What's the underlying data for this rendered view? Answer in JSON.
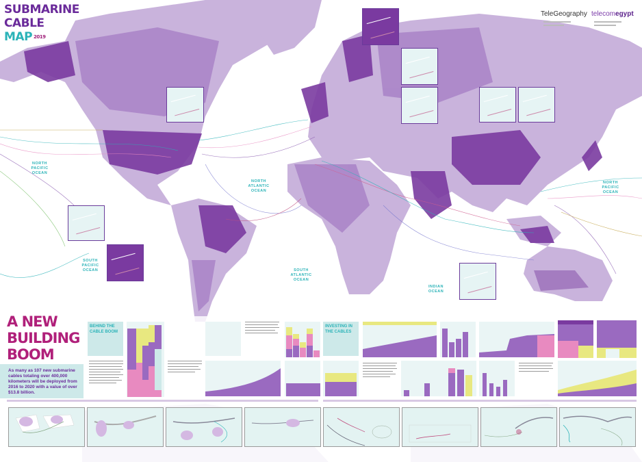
{
  "title": {
    "line1": "SUBMARINE",
    "line2": "CABLE",
    "line3": "MAP",
    "year": "2019"
  },
  "logos": {
    "primary": "TeleGeography",
    "partner_prefix": "telecom",
    "partner_suffix": "egypt"
  },
  "oceans": [
    {
      "id": "north-pacific-west",
      "label": "NORTH PACIFIC OCEAN"
    },
    {
      "id": "north-pacific-east",
      "label": "NORTH PACIFIC OCEAN"
    },
    {
      "id": "north-atlantic",
      "label": "NORTH ATLANTIC OCEAN"
    },
    {
      "id": "south-pacific",
      "label": "SOUTH PACIFIC OCEAN"
    },
    {
      "id": "south-atlantic",
      "label": "SOUTH ATLANTIC OCEAN"
    },
    {
      "id": "indian",
      "label": "INDIAN OCEAN"
    }
  ],
  "headline": {
    "line1": "A NEW",
    "line2": "BUILDING",
    "line3": "BOOM"
  },
  "summary": "As many as 107 new submarine cables totaling over 400,000 kilometers will be deployed from 2016 to 2020 with a value of over $13.8 billion.",
  "sections": {
    "behind": "BEHIND THE CABLE BOOM",
    "investing": "INVESTING IN THE CABLES"
  },
  "colors": {
    "land": "#c9b3dc",
    "land_dark": "#7a3aa0",
    "land_mid": "#a77fc6",
    "ocean_label": "#2bb3b8",
    "headline": "#b0207a",
    "teal_box": "#cde9e9",
    "chart_yellow": "#e8e880",
    "chart_pink": "#e88ac0",
    "chart_purple": "#9a6ac0"
  }
}
